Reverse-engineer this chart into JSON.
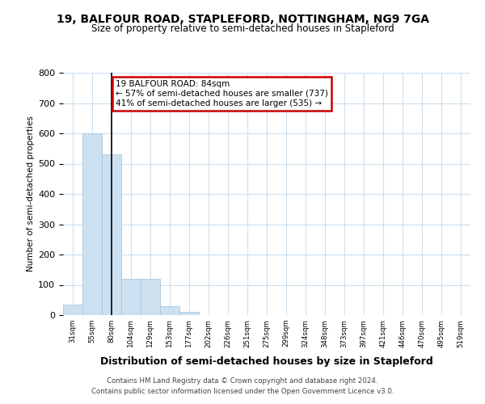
{
  "title": "19, BALFOUR ROAD, STAPLEFORD, NOTTINGHAM, NG9 7GA",
  "subtitle": "Size of property relative to semi-detached houses in Stapleford",
  "xlabel": "Distribution of semi-detached houses by size in Stapleford",
  "ylabel": "Number of semi-detached properties",
  "footer1": "Contains HM Land Registry data © Crown copyright and database right 2024.",
  "footer2": "Contains public sector information licensed under the Open Government Licence v3.0.",
  "bin_labels": [
    "31sqm",
    "55sqm",
    "80sqm",
    "104sqm",
    "129sqm",
    "153sqm",
    "177sqm",
    "202sqm",
    "226sqm",
    "251sqm",
    "275sqm",
    "299sqm",
    "324sqm",
    "348sqm",
    "373sqm",
    "397sqm",
    "421sqm",
    "446sqm",
    "470sqm",
    "495sqm",
    "519sqm"
  ],
  "values": [
    35,
    600,
    530,
    120,
    120,
    30,
    10,
    0,
    0,
    0,
    0,
    0,
    0,
    0,
    0,
    0,
    0,
    0,
    0,
    0,
    0
  ],
  "bar_color": "#cce0f0",
  "bar_edge_color": "#aac8e0",
  "property_bin_index": 2,
  "annotation_title": "19 BALFOUR ROAD: 84sqm",
  "annotation_line1": "← 57% of semi-detached houses are smaller (737)",
  "annotation_line2": "41% of semi-detached houses are larger (535) →",
  "annotation_border_color": "#cc0000",
  "ylim_max": 800,
  "yticks": [
    0,
    100,
    200,
    300,
    400,
    500,
    600,
    700,
    800
  ],
  "background_color": "#ffffff",
  "grid_color": "#cce0ee"
}
